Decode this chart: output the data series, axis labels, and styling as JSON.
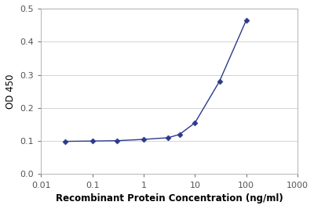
{
  "x": [
    0.03,
    0.1,
    0.3,
    1.0,
    3.0,
    5.0,
    10.0,
    30.0,
    100.0
  ],
  "y": [
    0.099,
    0.1,
    0.101,
    0.105,
    0.11,
    0.12,
    0.155,
    0.28,
    0.465
  ],
  "line_color": "#2B3A8A",
  "marker_color": "#2B3A8A",
  "marker_style": "D",
  "marker_size": 3.5,
  "line_width": 1.0,
  "xlabel": "Recombinant Protein Concentration (ng/ml)",
  "ylabel": "OD 450",
  "xlim": [
    0.01,
    1000
  ],
  "ylim": [
    0,
    0.5
  ],
  "yticks": [
    0,
    0.1,
    0.2,
    0.3,
    0.4,
    0.5
  ],
  "xtick_labels": [
    "0.01",
    "0.1",
    "1",
    "10",
    "100",
    "1000"
  ],
  "xtick_vals": [
    0.01,
    0.1,
    1,
    10,
    100,
    1000
  ],
  "xlabel_fontsize": 8.5,
  "ylabel_fontsize": 8.5,
  "tick_fontsize": 8,
  "background_color": "#ffffff",
  "plot_bg_color": "#ffffff",
  "grid_color": "#cccccc",
  "label_color": "#000000",
  "xlabel_bold": true
}
